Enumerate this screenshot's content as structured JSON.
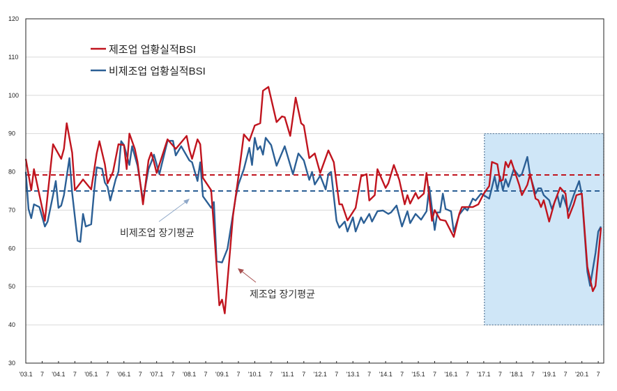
{
  "chart_data": {
    "type": "line",
    "title": "",
    "xlabel": "",
    "ylabel": "",
    "ylim": [
      30,
      120
    ],
    "yticks": [
      30,
      40,
      50,
      60,
      70,
      80,
      90,
      100,
      110,
      120
    ],
    "xlim": [
      "2003-01",
      "2020-08"
    ],
    "xtick_labels": [
      "'03.1",
      "7",
      "'04.1",
      "7",
      "'05.1",
      "7",
      "'06.1",
      "7",
      "'07.1",
      "7",
      "'08.1",
      "7",
      "'09.1",
      "7",
      "'10.1",
      "7",
      "'11.1",
      "7",
      "'12.1",
      "7",
      "'13.1",
      "7",
      "'14.1",
      "7",
      "'15.1",
      "7",
      "'16.1",
      "7",
      "'17.1",
      "7",
      "'18.1",
      "7",
      "'19.1",
      "7",
      "'20.1",
      "7"
    ],
    "grid": "horizontal",
    "legend": "top-left",
    "series": [
      {
        "name": "제조업 업황실적BSI",
        "color": "#c0141e",
        "points": [
          [
            "2003-01",
            83.4
          ],
          [
            "2003-03",
            75.2
          ],
          [
            "2003-04",
            80.7
          ],
          [
            "2003-08",
            67.2
          ],
          [
            "2003-11",
            87.2
          ],
          [
            "2004-02",
            83.4
          ],
          [
            "2004-03",
            86
          ],
          [
            "2004-04",
            92.7
          ],
          [
            "2004-06",
            85
          ],
          [
            "2004-07",
            75.2
          ],
          [
            "2004-10",
            78
          ],
          [
            "2005-01",
            75.4
          ],
          [
            "2005-03",
            84.8
          ],
          [
            "2005-04",
            88
          ],
          [
            "2005-06",
            82
          ],
          [
            "2005-07",
            77
          ],
          [
            "2005-09",
            80
          ],
          [
            "2005-11",
            87.2
          ],
          [
            "2006-01",
            87
          ],
          [
            "2006-02",
            80.7
          ],
          [
            "2006-03",
            90
          ],
          [
            "2006-05",
            86
          ],
          [
            "2006-06",
            82.6
          ],
          [
            "2006-08",
            71.5
          ],
          [
            "2006-10",
            83
          ],
          [
            "2006-11",
            85
          ],
          [
            "2006-12",
            82.6
          ],
          [
            "2007-01",
            79.7
          ],
          [
            "2007-05",
            88.5
          ],
          [
            "2007-08",
            86
          ],
          [
            "2007-12",
            89.4
          ],
          [
            "2008-01",
            85.8
          ],
          [
            "2008-02",
            83.4
          ],
          [
            "2008-04",
            88.5
          ],
          [
            "2008-05",
            87.2
          ],
          [
            "2008-06",
            78.4
          ],
          [
            "2008-09",
            75.2
          ],
          [
            "2008-10",
            65.4
          ],
          [
            "2008-12",
            45.1
          ],
          [
            "2009-01",
            46.6
          ],
          [
            "2009-02",
            43
          ],
          [
            "2009-05",
            68.5
          ],
          [
            "2009-07",
            78.8
          ],
          [
            "2009-09",
            89.8
          ],
          [
            "2009-11",
            88.1
          ],
          [
            "2010-01",
            92.1
          ],
          [
            "2010-03",
            92.7
          ],
          [
            "2010-04",
            101.2
          ],
          [
            "2010-06",
            102.2
          ],
          [
            "2010-09",
            93
          ],
          [
            "2010-11",
            94.5
          ],
          [
            "2010-12",
            94.3
          ],
          [
            "2011-02",
            89.4
          ],
          [
            "2011-04",
            99.4
          ],
          [
            "2011-06",
            92.7
          ],
          [
            "2011-07",
            92.1
          ],
          [
            "2011-09",
            83.6
          ],
          [
            "2011-11",
            84.8
          ],
          [
            "2012-01",
            79.7
          ],
          [
            "2012-04",
            85.6
          ],
          [
            "2012-06",
            82.5
          ],
          [
            "2012-08",
            71.5
          ],
          [
            "2012-09",
            71.5
          ],
          [
            "2012-11",
            67.3
          ],
          [
            "2013-02",
            70.6
          ],
          [
            "2013-04",
            78.8
          ],
          [
            "2013-06",
            79.4
          ],
          [
            "2013-07",
            72.5
          ],
          [
            "2013-09",
            73.9
          ],
          [
            "2013-10",
            80.7
          ],
          [
            "2014-01",
            75.8
          ],
          [
            "2014-02",
            77
          ],
          [
            "2014-04",
            81.8
          ],
          [
            "2014-06",
            77.9
          ],
          [
            "2014-08",
            71.5
          ],
          [
            "2014-09",
            73.9
          ],
          [
            "2014-10",
            71.7
          ],
          [
            "2014-12",
            74.5
          ],
          [
            "2015-01",
            73
          ],
          [
            "2015-03",
            74.3
          ],
          [
            "2015-04",
            79.7
          ],
          [
            "2015-06",
            67.2
          ],
          [
            "2015-07",
            70
          ],
          [
            "2015-09",
            67.5
          ],
          [
            "2015-11",
            67.2
          ],
          [
            "2016-02",
            63
          ],
          [
            "2016-04",
            69
          ],
          [
            "2016-05",
            70.8
          ],
          [
            "2016-07",
            70.8
          ],
          [
            "2016-09",
            70.8
          ],
          [
            "2016-11",
            71.5
          ],
          [
            "2017-01",
            74.3
          ],
          [
            "2017-03",
            76.3
          ],
          [
            "2017-04",
            82.6
          ],
          [
            "2017-06",
            82
          ],
          [
            "2017-07",
            77.6
          ],
          [
            "2017-08",
            77.9
          ],
          [
            "2017-09",
            82.6
          ],
          [
            "2017-10",
            81.2
          ],
          [
            "2017-11",
            83
          ],
          [
            "2018-02",
            76.6
          ],
          [
            "2018-03",
            73.9
          ],
          [
            "2018-05",
            76.6
          ],
          [
            "2018-06",
            79.4
          ],
          [
            "2018-08",
            73
          ],
          [
            "2018-09",
            72.6
          ],
          [
            "2018-10",
            70.8
          ],
          [
            "2018-11",
            72.6
          ],
          [
            "2019-01",
            67
          ],
          [
            "2019-03",
            72.1
          ],
          [
            "2019-05",
            75.9
          ],
          [
            "2019-07",
            74.3
          ],
          [
            "2019-08",
            67.9
          ],
          [
            "2019-10",
            71.5
          ],
          [
            "2019-11",
            73.9
          ],
          [
            "2020-01",
            74.3
          ],
          [
            "2020-03",
            55.2
          ],
          [
            "2020-05",
            48.8
          ],
          [
            "2020-06",
            50.2
          ],
          [
            "2020-08",
            65.4
          ]
        ]
      },
      {
        "name": "비제조업 업황실적BSI",
        "color": "#2b5f95",
        "points": [
          [
            "2003-01",
            80
          ],
          [
            "2003-02",
            70.3
          ],
          [
            "2003-03",
            67.9
          ],
          [
            "2003-04",
            71.5
          ],
          [
            "2003-06",
            70.8
          ],
          [
            "2003-08",
            65.7
          ],
          [
            "2003-09",
            67
          ],
          [
            "2003-11",
            73.9
          ],
          [
            "2003-12",
            77.6
          ],
          [
            "2004-01",
            70.6
          ],
          [
            "2004-02",
            71.2
          ],
          [
            "2004-03",
            73.9
          ],
          [
            "2004-05",
            83.6
          ],
          [
            "2004-06",
            74.5
          ],
          [
            "2004-08",
            62
          ],
          [
            "2004-09",
            61.7
          ],
          [
            "2004-10",
            69
          ],
          [
            "2004-11",
            65.7
          ],
          [
            "2005-01",
            66.3
          ],
          [
            "2005-02",
            74.5
          ],
          [
            "2005-03",
            81.2
          ],
          [
            "2005-05",
            80.8
          ],
          [
            "2005-06",
            77.2
          ],
          [
            "2005-07",
            76.1
          ],
          [
            "2005-08",
            72.5
          ],
          [
            "2005-10",
            78.1
          ],
          [
            "2005-11",
            80
          ],
          [
            "2005-12",
            88
          ],
          [
            "2006-01",
            87
          ],
          [
            "2006-03",
            81.8
          ],
          [
            "2006-04",
            86.7
          ],
          [
            "2006-06",
            81.6
          ],
          [
            "2006-08",
            72.6
          ],
          [
            "2006-10",
            80.7
          ],
          [
            "2006-11",
            82.5
          ],
          [
            "2006-12",
            84.5
          ],
          [
            "2007-02",
            79.4
          ],
          [
            "2007-05",
            88.1
          ],
          [
            "2007-07",
            88.1
          ],
          [
            "2007-08",
            84.3
          ],
          [
            "2007-10",
            86.7
          ],
          [
            "2008-01",
            83
          ],
          [
            "2008-02",
            82.5
          ],
          [
            "2008-04",
            77.6
          ],
          [
            "2008-05",
            82.5
          ],
          [
            "2008-06",
            73.6
          ],
          [
            "2008-09",
            70.6
          ],
          [
            "2008-10",
            72.1
          ],
          [
            "2008-11",
            56.6
          ],
          [
            "2009-01",
            56.3
          ],
          [
            "2009-03",
            59.9
          ],
          [
            "2009-06",
            73.4
          ],
          [
            "2009-07",
            76.7
          ],
          [
            "2009-09",
            80.7
          ],
          [
            "2009-11",
            86.3
          ],
          [
            "2009-12",
            81.8
          ],
          [
            "2010-01",
            88.9
          ],
          [
            "2010-02",
            85.8
          ],
          [
            "2010-03",
            86.7
          ],
          [
            "2010-04",
            84.5
          ],
          [
            "2010-05",
            88.9
          ],
          [
            "2010-07",
            87
          ],
          [
            "2010-09",
            81.6
          ],
          [
            "2010-12",
            86.7
          ],
          [
            "2011-03",
            79.4
          ],
          [
            "2011-05",
            84.8
          ],
          [
            "2011-07",
            83
          ],
          [
            "2011-09",
            77.9
          ],
          [
            "2011-10",
            80
          ],
          [
            "2011-11",
            76.7
          ],
          [
            "2012-01",
            79
          ],
          [
            "2012-03",
            75.4
          ],
          [
            "2012-04",
            79.4
          ],
          [
            "2012-05",
            80
          ],
          [
            "2012-07",
            67.2
          ],
          [
            "2012-08",
            65.4
          ],
          [
            "2012-10",
            67
          ],
          [
            "2012-11",
            64.4
          ],
          [
            "2013-01",
            68.1
          ],
          [
            "2013-02",
            64.4
          ],
          [
            "2013-04",
            68.1
          ],
          [
            "2013-05",
            66.6
          ],
          [
            "2013-07",
            69
          ],
          [
            "2013-08",
            67
          ],
          [
            "2013-10",
            69.7
          ],
          [
            "2013-12",
            69.9
          ],
          [
            "2014-02",
            69
          ],
          [
            "2014-03",
            69.4
          ],
          [
            "2014-05",
            71.2
          ],
          [
            "2014-07",
            65.7
          ],
          [
            "2014-09",
            69.7
          ],
          [
            "2014-10",
            66.6
          ],
          [
            "2014-12",
            69
          ],
          [
            "2015-02",
            67.5
          ],
          [
            "2015-04",
            69.7
          ],
          [
            "2015-05",
            76.1
          ],
          [
            "2015-07",
            64.8
          ],
          [
            "2015-08",
            69.4
          ],
          [
            "2015-09",
            69.4
          ],
          [
            "2015-10",
            74.3
          ],
          [
            "2015-11",
            70.3
          ],
          [
            "2016-01",
            69.7
          ],
          [
            "2016-02",
            64.3
          ],
          [
            "2016-04",
            68.8
          ],
          [
            "2016-06",
            70.6
          ],
          [
            "2016-07",
            69.9
          ],
          [
            "2016-09",
            73
          ],
          [
            "2016-10",
            72.5
          ],
          [
            "2016-12",
            74.3
          ],
          [
            "2017-01",
            73.9
          ],
          [
            "2017-03",
            73
          ],
          [
            "2017-05",
            78.8
          ],
          [
            "2017-06",
            75.2
          ],
          [
            "2017-07",
            78.8
          ],
          [
            "2017-08",
            75.2
          ],
          [
            "2017-09",
            78.1
          ],
          [
            "2017-10",
            76.1
          ],
          [
            "2017-12",
            80.7
          ],
          [
            "2018-02",
            78.8
          ],
          [
            "2018-03",
            79.4
          ],
          [
            "2018-05",
            83.9
          ],
          [
            "2018-06",
            79
          ],
          [
            "2018-08",
            74.3
          ],
          [
            "2018-09",
            75.7
          ],
          [
            "2018-10",
            75.7
          ],
          [
            "2018-11",
            73.9
          ],
          [
            "2019-01",
            72.6
          ],
          [
            "2019-02",
            70.3
          ],
          [
            "2019-04",
            73.9
          ],
          [
            "2019-05",
            70.8
          ],
          [
            "2019-06",
            73.9
          ],
          [
            "2019-08",
            69.7
          ],
          [
            "2019-10",
            73.9
          ],
          [
            "2019-12",
            77.6
          ],
          [
            "2020-01",
            73.9
          ],
          [
            "2020-03",
            53.9
          ],
          [
            "2020-04",
            50.2
          ],
          [
            "2020-06",
            58.8
          ],
          [
            "2020-07",
            64.4
          ],
          [
            "2020-08",
            65.7
          ]
        ]
      }
    ],
    "reference_lines": [
      {
        "label": "제조업 장기평균",
        "value": 79.2,
        "color": "#c0141e",
        "style": "dashed"
      },
      {
        "label": "비제조업 장기평균",
        "value": 75,
        "color": "#2b5f95",
        "style": "dashed"
      }
    ],
    "highlight_region": {
      "x_from": "2017-02",
      "x_to": "2020-08",
      "y_from": 40,
      "y_to": 90,
      "color": "#cfe6f7"
    }
  }
}
